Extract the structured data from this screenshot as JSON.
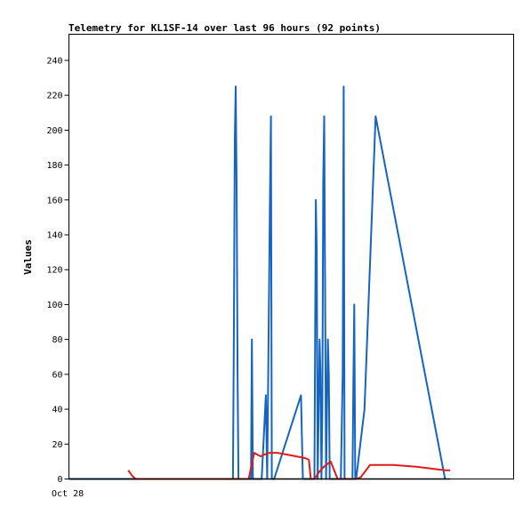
{
  "chart_data": {
    "type": "line",
    "title": "Telemetry for KL1SF-14 over last 96 hours (92 points)",
    "xlabel": "",
    "ylabel": "Values",
    "x_ticks": [
      "Oct 28"
    ],
    "y_ticks": [
      0,
      20,
      40,
      60,
      80,
      100,
      120,
      140,
      160,
      180,
      200,
      220,
      240
    ],
    "xlim": [
      0,
      96
    ],
    "ylim": [
      0,
      255
    ],
    "grid": false,
    "legend": "none",
    "series": [
      {
        "color": "#1565c0",
        "x": [
          0.0,
          6.9,
          35.4,
          35.6,
          35.8,
          36.0,
          36.2,
          36.4,
          36.6,
          39.3,
          39.5,
          39.7,
          41.6,
          42.5,
          42.8,
          43.4,
          43.6,
          43.8,
          44.3,
          50.1,
          50.5,
          53.0,
          53.3,
          53.5,
          53.7,
          54.1,
          54.3,
          54.5,
          54.7,
          54.9,
          55.1,
          55.5,
          55.7,
          55.9,
          56.1,
          56.3,
          56.5,
          58.7,
          59.1,
          59.3,
          59.5,
          61.2,
          61.4,
          61.6,
          61.8,
          62.0,
          63.8,
          66.2,
          81.2
        ],
        "values": [
          0,
          0,
          0,
          80,
          195,
          225,
          170,
          60,
          0,
          0,
          80,
          0,
          0,
          48,
          0,
          160,
          208,
          0,
          0,
          48,
          0,
          0,
          160,
          130,
          0,
          80,
          60,
          0,
          40,
          170,
          208,
          0,
          40,
          80,
          60,
          0,
          0,
          0,
          60,
          225,
          0,
          0,
          55,
          100,
          0,
          0,
          40,
          208,
          0
        ]
      },
      {
        "color": "#e01b1b",
        "x": [
          12.8,
          13.6,
          14.4,
          16.0,
          18.0,
          20.0,
          23.5,
          27.0,
          30.5,
          33.0,
          35.0,
          37.0,
          38.8,
          40.0,
          40.6,
          41.4,
          42.2,
          43.4,
          45.0,
          47.0,
          49.0,
          51.0,
          51.8,
          52.2,
          53.0,
          54.0,
          55.0,
          56.5,
          58.0,
          60.0,
          62.0,
          63.0,
          65.0,
          70.0,
          75.0,
          81.2,
          82.3
        ],
        "values": [
          5,
          2,
          0,
          0,
          0,
          0,
          0,
          0,
          0,
          0,
          0,
          0,
          0,
          15,
          14,
          13,
          14,
          15,
          15,
          14,
          13,
          12,
          11,
          0,
          0,
          4,
          7,
          10,
          0,
          0,
          0,
          1,
          8,
          8,
          7,
          5,
          5
        ]
      },
      {
        "color": "#000000",
        "x": [
          0.0,
          82.3
        ],
        "values": [
          0,
          0
        ]
      }
    ]
  }
}
